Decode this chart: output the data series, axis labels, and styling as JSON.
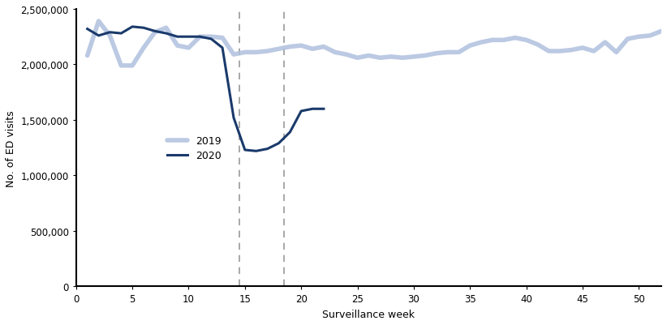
{
  "title": "",
  "xlabel": "Surveillance week",
  "ylabel": "No. of ED visits",
  "xlim": [
    0,
    52
  ],
  "ylim": [
    0,
    2500000
  ],
  "yticks": [
    0,
    500000,
    1000000,
    1500000,
    2000000,
    2500000
  ],
  "xticks": [
    0,
    5,
    10,
    15,
    20,
    25,
    30,
    35,
    40,
    45,
    50
  ],
  "dashed_lines": [
    14.5,
    18.5
  ],
  "color_2019": "#b0c0de",
  "color_2020": "#1a3a6b",
  "color_dashed": "#9a9a9a",
  "data_2019": [
    2080000,
    2390000,
    2260000,
    1990000,
    1990000,
    2150000,
    2290000,
    2330000,
    2170000,
    2150000,
    2250000,
    2250000,
    2240000,
    2090000,
    2110000,
    2110000,
    2120000,
    2140000,
    2160000,
    2170000,
    2140000,
    2160000,
    2110000,
    2090000,
    2060000,
    2080000,
    2060000,
    2070000,
    2060000,
    2070000,
    2080000,
    2100000,
    2110000,
    2110000,
    2170000,
    2200000,
    2220000,
    2220000,
    2240000,
    2220000,
    2180000,
    2120000,
    2120000,
    2130000,
    2150000,
    2120000,
    2200000,
    2110000,
    2230000,
    2250000,
    2260000,
    2300000
  ],
  "data_2020_weeks": [
    1,
    2,
    3,
    4,
    5,
    6,
    7,
    8,
    9,
    10,
    11,
    12,
    13,
    14,
    15,
    16,
    17,
    18,
    19,
    20,
    21,
    22
  ],
  "data_2020": [
    2320000,
    2260000,
    2290000,
    2280000,
    2340000,
    2330000,
    2300000,
    2280000,
    2250000,
    2250000,
    2250000,
    2230000,
    2150000,
    1520000,
    1230000,
    1220000,
    1240000,
    1290000,
    1390000,
    1580000,
    1600000,
    1600000
  ],
  "background_color": "#ffffff",
  "figsize": [
    8.22,
    4.02
  ],
  "dpi": 100
}
